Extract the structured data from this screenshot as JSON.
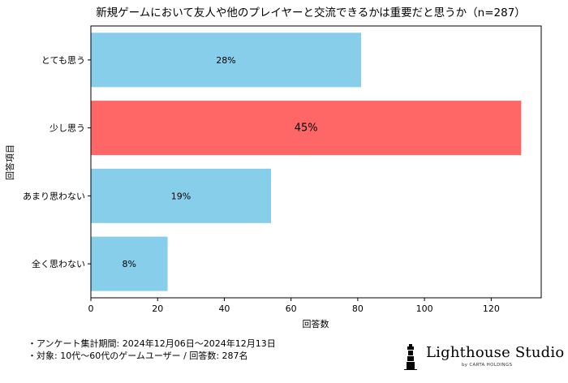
{
  "chart_data": {
    "type": "bar",
    "orientation": "horizontal",
    "title": "新規ゲームにおいて友人や他のプレイヤーと交流できるかは重要だと思うか（n=287）",
    "xlabel": "回答数",
    "ylabel": "回答項目",
    "categories": [
      "とても思う",
      "少し思う",
      "あまり思わない",
      "全く思わない"
    ],
    "values": [
      81,
      129,
      54,
      23
    ],
    "data_labels": [
      "28%",
      "45%",
      "19%",
      "8%"
    ],
    "xlim": [
      0,
      135
    ],
    "xticks": [
      "0",
      "20",
      "40",
      "60",
      "80",
      "100",
      "120"
    ],
    "grid": false,
    "colors": [
      "#87CEEB",
      "#FF6666",
      "#87CEEB",
      "#87CEEB"
    ]
  },
  "footnotes": [
    "・アンケート集計期間: 2024年12月06日〜2024年12月13日",
    "・対象: 10代〜60代のゲームユーザー / 回答数: 287名"
  ],
  "brand": {
    "name": "Lighthouse Studio",
    "sub": "by CARTA HOLDINGS",
    "icon": "lighthouse-icon"
  }
}
